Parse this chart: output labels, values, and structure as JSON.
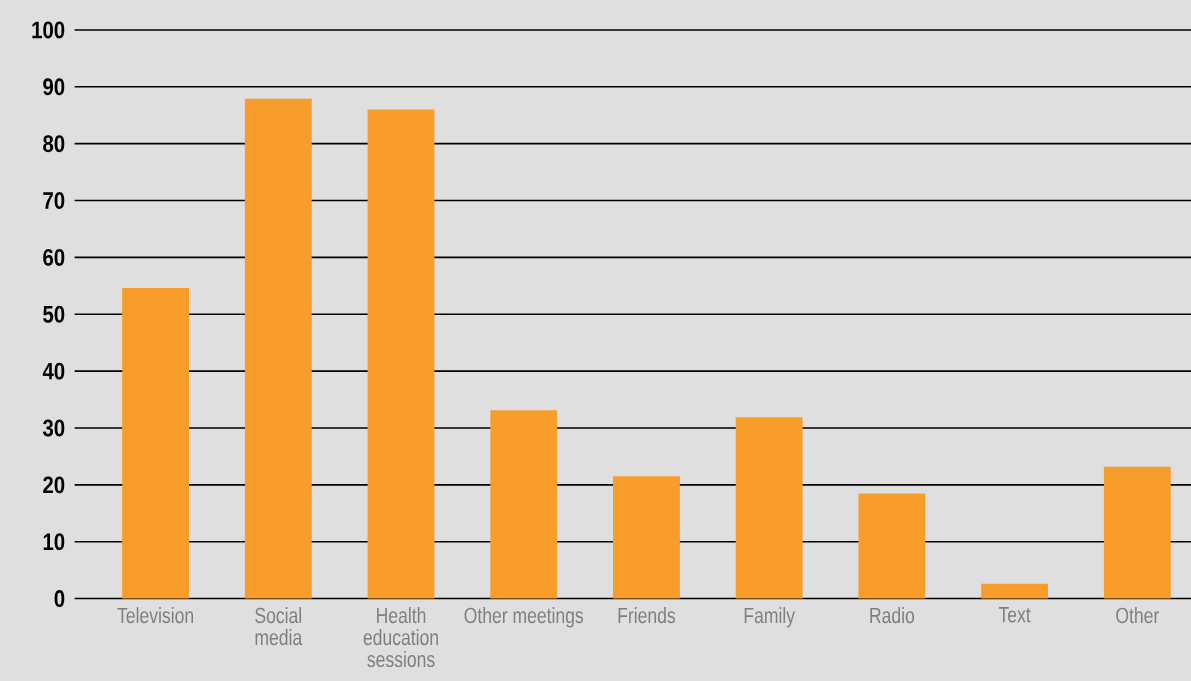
{
  "chart_data": {
    "type": "bar",
    "categories": [
      "Television",
      "Social media",
      "Health education sessions",
      "Other meetings",
      "Friends",
      "Family",
      "Radio",
      "Text",
      "Other"
    ],
    "values": [
      54.6,
      87.9,
      86.0,
      33.1,
      21.5,
      31.9,
      18.5,
      2.6,
      23.2
    ],
    "color": "#f89d2c",
    "ylim": [
      0,
      100
    ],
    "yticks": [
      0,
      10,
      20,
      30,
      40,
      50,
      60,
      70,
      80,
      90,
      100
    ],
    "grid": "y"
  }
}
